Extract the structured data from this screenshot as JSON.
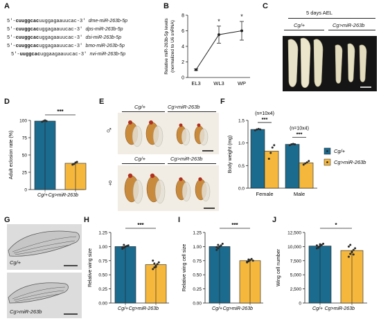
{
  "panels": {
    "A": {
      "letter": "A",
      "sequences": [
        {
          "prefix": "5'-",
          "seed": "cuuggcac",
          "rest": "uuggagaauucac-3'",
          "name": "dme-miR-263b-5p"
        },
        {
          "prefix": "5'-",
          "seed": "cuuggcac",
          "rest": "uggagaauucac-3'",
          "name": "dps-miR-263b-5p"
        },
        {
          "prefix": "5'-",
          "seed": "cuuggcac",
          "rest": "uggagaauucac-3'",
          "name": "dsi-miR-263b-5p"
        },
        {
          "prefix": "5'-",
          "seed": "cuuggcac",
          "rest": "uggagaauucac-3'",
          "name": "bmo-miR-263b-5p"
        },
        {
          "prefix": "5'-",
          "seed": "uuggcac",
          "rest": "uggaagaauucac-3'",
          "name": "nvi-miR-263b-5p"
        }
      ]
    },
    "B": {
      "letter": "B",
      "chart_data": {
        "type": "line",
        "categories": [
          "EL3",
          "WL3",
          "WP"
        ],
        "values": [
          1.0,
          5.5,
          6.0
        ],
        "errors": [
          0.1,
          1.1,
          1.2
        ],
        "ylabel_line1": "Relative miR-263b-5p levels",
        "ylabel_line2": "(normalized to U6 snRNA)",
        "ylim": [
          0,
          8
        ],
        "yticks": [
          "0",
          "2",
          "4",
          "6",
          "8"
        ],
        "significance": [
          "",
          "*",
          "*"
        ]
      }
    },
    "C": {
      "letter": "C",
      "title": "5 days AEL",
      "group1": "Cg/+",
      "group2": "Cg>miR-263b"
    },
    "D": {
      "letter": "D",
      "chart_data": {
        "type": "bar",
        "categories": [
          "Cg/+",
          "Cg>miR-263b"
        ],
        "values": [
          99,
          38
        ],
        "points": [
          [
            98,
            99,
            100,
            99
          ],
          [
            36,
            37,
            39,
            40
          ]
        ],
        "ylabel": "Adult eclosion rate (%)",
        "ylim": [
          0,
          100
        ],
        "yticks": [
          "0",
          "25",
          "50",
          "75",
          "100"
        ],
        "significance": "***"
      }
    },
    "E": {
      "letter": "E",
      "male_symbol": "♂",
      "female_symbol": "♀",
      "group1": "Cg/+",
      "group2": "Cg>miR-263b"
    },
    "F": {
      "letter": "F",
      "chart_data": {
        "type": "bar",
        "categories": [
          "Female",
          "Male"
        ],
        "series": [
          {
            "name": "Cg/+",
            "values": [
              1.3,
              0.97
            ],
            "points": [
              [
                1.28,
                1.3,
                1.31,
                1.3
              ],
              [
                0.95,
                0.97,
                0.98,
                0.97
              ]
            ]
          },
          {
            "name": "Cg>miR-263b",
            "values": [
              0.82,
              0.56
            ],
            "points": [
              [
                0.65,
                0.78,
                0.9,
                0.95
              ],
              [
                0.52,
                0.55,
                0.57,
                0.6
              ]
            ]
          }
        ],
        "ylabel": "Body weight (mg)",
        "ylim": [
          0,
          1.5
        ],
        "yticks": [
          "0.0",
          "0.5",
          "1.0",
          "1.5"
        ],
        "n_labels": [
          "(n=10x4)",
          "(n=10x4)"
        ],
        "significance": [
          "***",
          "***"
        ]
      }
    },
    "G": {
      "letter": "G",
      "label1": "Cg/+",
      "label2": "Cg>miR-263b"
    },
    "H": {
      "letter": "H",
      "chart_data": {
        "type": "bar",
        "categories": [
          "Cg/+",
          "Cg>miR-263b"
        ],
        "values": [
          1.0,
          0.68
        ],
        "points": [
          [
            0.96,
            0.98,
            1.0,
            1.01,
            1.02,
            0.99,
            1.03
          ],
          [
            0.6,
            0.63,
            0.66,
            0.69,
            0.72,
            0.75,
            0.7,
            0.64
          ]
        ],
        "ylabel": "Relative wing size",
        "ylim": [
          0,
          1.25
        ],
        "yticks": [
          "0.00",
          "0.25",
          "0.50",
          "0.75",
          "1.00",
          "1.25"
        ],
        "significance": "***"
      }
    },
    "I": {
      "letter": "I",
      "chart_data": {
        "type": "bar",
        "categories": [
          "Cg/+",
          "Cg>miR-263b"
        ],
        "values": [
          1.0,
          0.75
        ],
        "points": [
          [
            0.94,
            0.97,
            1.0,
            1.02,
            1.05,
            0.99,
            1.03
          ],
          [
            0.72,
            0.74,
            0.76,
            0.78,
            0.75,
            0.73,
            0.77
          ]
        ],
        "ylabel": "Relative wing cell size",
        "ylim": [
          0,
          1.25
        ],
        "yticks": [
          "0.00",
          "0.25",
          "0.50",
          "0.75",
          "1.00",
          "1.25"
        ],
        "significance": "***"
      }
    },
    "J": {
      "letter": "J",
      "chart_data": {
        "type": "bar",
        "categories": [
          "Cg/+",
          "Cg>miR-263b"
        ],
        "values": [
          10100,
          9300
        ],
        "points": [
          [
            9700,
            9900,
            10100,
            10300,
            10500,
            10200,
            9800,
            10400
          ],
          [
            8200,
            8700,
            9100,
            9400,
            9700,
            10000,
            10300,
            9000,
            8600
          ]
        ],
        "ylabel": "Wing cell number",
        "ylim": [
          0,
          12500
        ],
        "yticks": [
          "0",
          "2,500",
          "5,000",
          "7,500",
          "10,000",
          "12,500"
        ],
        "significance": "*"
      }
    }
  },
  "colors": {
    "control": "#1b6b8f",
    "treatment": "#f5b73c",
    "point": "#2a2a2a"
  }
}
